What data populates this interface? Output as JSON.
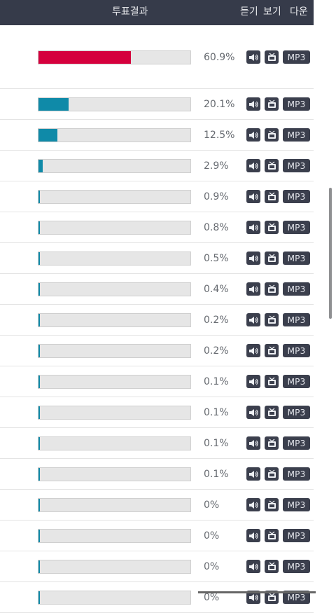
{
  "header": {
    "result_label": "투표결과",
    "listen_label": "듣기",
    "watch_label": "보기",
    "download_label": "다운"
  },
  "colors": {
    "header_bg": "#363b4a",
    "leader_bar": "#d5003d",
    "bar_fill": "#0f8aa8",
    "button_bg": "#3b3f4d"
  },
  "buttons": {
    "mp3_label": "MP3",
    "listen_icon": "speaker-icon",
    "watch_icon": "tv-icon"
  },
  "rows": [
    {
      "percent_label": "60.9%",
      "value": 60.9
    },
    {
      "percent_label": "20.1%",
      "value": 20.1
    },
    {
      "percent_label": "12.5%",
      "value": 12.5
    },
    {
      "percent_label": "2.9%",
      "value": 2.9
    },
    {
      "percent_label": "0.9%",
      "value": 0.9
    },
    {
      "percent_label": "0.8%",
      "value": 0.8
    },
    {
      "percent_label": "0.5%",
      "value": 0.5
    },
    {
      "percent_label": "0.4%",
      "value": 0.4
    },
    {
      "percent_label": "0.2%",
      "value": 0.2
    },
    {
      "percent_label": "0.2%",
      "value": 0.2
    },
    {
      "percent_label": "0.1%",
      "value": 0.1
    },
    {
      "percent_label": "0.1%",
      "value": 0.1
    },
    {
      "percent_label": "0.1%",
      "value": 0.1
    },
    {
      "percent_label": "0.1%",
      "value": 0.1
    },
    {
      "percent_label": "0%",
      "value": 0
    },
    {
      "percent_label": "0%",
      "value": 0
    },
    {
      "percent_label": "0%",
      "value": 0
    },
    {
      "percent_label": "0%",
      "value": 0
    }
  ]
}
